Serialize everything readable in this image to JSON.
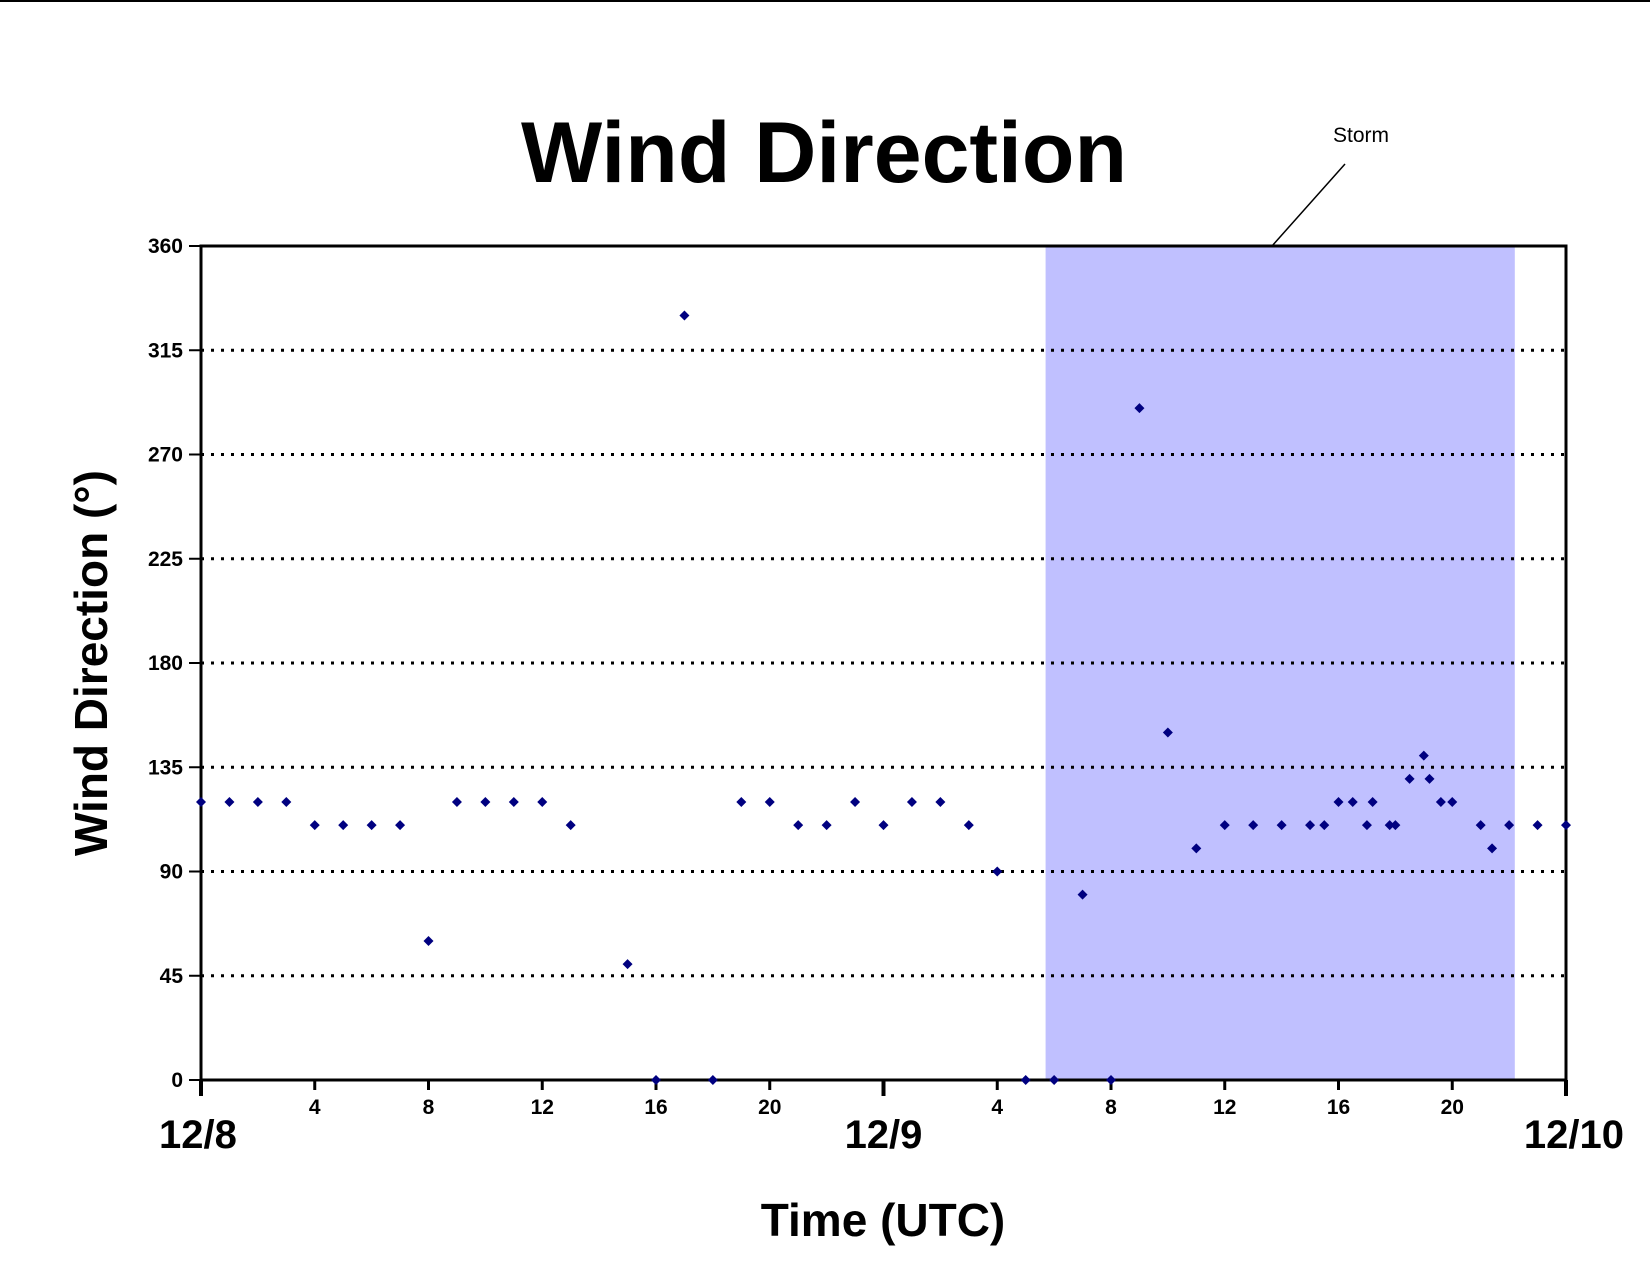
{
  "chart_data": {
    "type": "scatter",
    "title": "Wind Direction",
    "xlabel": "Time (UTC)",
    "ylabel": "Wind Direction (°)",
    "ylim": [
      0,
      360
    ],
    "yticks": [
      0,
      45,
      90,
      135,
      180,
      225,
      270,
      315,
      360
    ],
    "xlim": [
      "12/8 00:00",
      "12/10 00:00"
    ],
    "x_unit": "hours since 12/8 00:00 UTC",
    "date_labels": [
      {
        "label": "12/8",
        "hour": 0
      },
      {
        "label": "12/9",
        "hour": 24
      },
      {
        "label": "12/10",
        "hour": 48
      }
    ],
    "hour_ticks": [
      {
        "label": "4",
        "hour": 4
      },
      {
        "label": "8",
        "hour": 8
      },
      {
        "label": "12",
        "hour": 12
      },
      {
        "label": "16",
        "hour": 16
      },
      {
        "label": "20",
        "hour": 20
      },
      {
        "label": "4",
        "hour": 28
      },
      {
        "label": "8",
        "hour": 32
      },
      {
        "label": "12",
        "hour": 36
      },
      {
        "label": "16",
        "hour": 40
      },
      {
        "label": "20",
        "hour": 44
      }
    ],
    "grid": {
      "horizontal": true,
      "style": "dotted"
    },
    "marker_color": "#000080",
    "shaded_region": {
      "label": "Storm",
      "x_start": 29.7,
      "x_end": 46.2,
      "color": "#c0c0ff"
    },
    "series": [
      {
        "name": "",
        "points": [
          [
            0,
            120
          ],
          [
            1,
            120
          ],
          [
            2,
            120
          ],
          [
            3,
            120
          ],
          [
            4,
            110
          ],
          [
            5,
            110
          ],
          [
            6,
            110
          ],
          [
            7,
            110
          ],
          [
            8,
            60
          ],
          [
            9,
            120
          ],
          [
            10,
            120
          ],
          [
            11,
            120
          ],
          [
            12,
            120
          ],
          [
            13,
            110
          ],
          [
            15,
            50
          ],
          [
            16,
            0
          ],
          [
            17,
            330
          ],
          [
            18,
            0
          ],
          [
            19,
            120
          ],
          [
            20,
            120
          ],
          [
            21,
            110
          ],
          [
            22,
            110
          ],
          [
            23,
            120
          ],
          [
            24,
            110
          ],
          [
            25,
            120
          ],
          [
            26,
            120
          ],
          [
            27,
            110
          ],
          [
            28,
            90
          ],
          [
            29,
            0
          ],
          [
            30,
            0
          ],
          [
            31,
            80
          ],
          [
            32,
            0
          ],
          [
            33,
            290
          ],
          [
            34,
            150
          ],
          [
            35,
            100
          ],
          [
            36,
            110
          ],
          [
            37,
            110
          ],
          [
            38,
            110
          ],
          [
            39,
            110
          ],
          [
            39.5,
            110
          ],
          [
            40,
            120
          ],
          [
            40.5,
            120
          ],
          [
            41,
            110
          ],
          [
            41.2,
            120
          ],
          [
            41.8,
            110
          ],
          [
            42,
            110
          ],
          [
            42.5,
            130
          ],
          [
            43,
            140
          ],
          [
            43.2,
            130
          ],
          [
            43.6,
            120
          ],
          [
            44,
            120
          ],
          [
            45,
            110
          ],
          [
            45.4,
            100
          ],
          [
            46,
            110
          ],
          [
            47,
            110
          ],
          [
            48,
            110
          ]
        ]
      }
    ]
  }
}
